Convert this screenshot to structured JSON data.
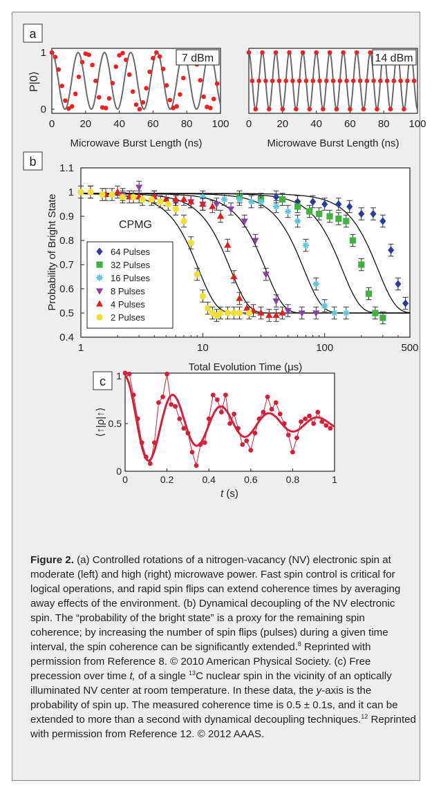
{
  "panel_labels": {
    "a": "a",
    "b": "b",
    "c": "c"
  },
  "chart_data": [
    {
      "id": "a-left",
      "type": "scatter",
      "annotation": "7 dBm",
      "xlabel": "Microwave Burst Length (ns)",
      "ylabel": "P|0⟩",
      "xlim": [
        0,
        100
      ],
      "ylim": [
        0,
        1
      ],
      "xticks": [
        "0",
        "20",
        "40",
        "60",
        "80",
        "100"
      ],
      "yticks": [
        "0",
        "1"
      ],
      "model": {
        "kind": "cosine",
        "period_ns": 15.6,
        "note": "fit line y = 0.5 + 0.5·cos(2πx/15.6)"
      },
      "series": [
        {
          "x": [
            0,
            2,
            4,
            6,
            8,
            10,
            12,
            14,
            16,
            18,
            20,
            22,
            24,
            26,
            28,
            30,
            32,
            34,
            36,
            38,
            40,
            42,
            44,
            46,
            48,
            50,
            52,
            54,
            56,
            58,
            60,
            62,
            64,
            66,
            68,
            70,
            72,
            74,
            76,
            78,
            80,
            82,
            84,
            86,
            88,
            90,
            92,
            94,
            96,
            98
          ],
          "y": [
            1.0,
            0.92,
            0.7,
            0.41,
            0.15,
            0.01,
            0.05,
            0.27,
            0.57,
            0.83,
            0.98,
            0.96,
            0.78,
            0.5,
            0.21,
            0.03,
            0.02,
            0.19,
            0.46,
            0.75,
            0.95,
            0.99,
            0.87,
            0.61,
            0.31,
            0.08,
            0.0,
            0.12,
            0.37,
            0.66,
            0.9,
            1.0,
            0.93,
            0.71,
            0.42,
            0.16,
            0.02,
            0.05,
            0.26,
            0.55,
            0.82,
            0.98,
            0.97,
            0.79,
            0.51,
            0.22,
            0.04,
            0.02,
            0.18,
            0.45
          ]
        }
      ]
    },
    {
      "id": "a-right",
      "type": "scatter",
      "annotation": "14 dBm",
      "xlabel": "Microwave Burst Length (ns)",
      "xlim": [
        0,
        100
      ],
      "ylim": [
        0,
        1
      ],
      "xticks": [
        "0",
        "20",
        "40",
        "60",
        "80",
        "100"
      ],
      "model": {
        "kind": "cosine",
        "period_ns": 8.0,
        "note": "fit line y = 0.5 + 0.5·cos(2πx/8)"
      },
      "series": [
        {
          "x": [
            0,
            2,
            4,
            6,
            8,
            10,
            12,
            14,
            16,
            18,
            20,
            22,
            24,
            26,
            28,
            30,
            32,
            34,
            36,
            38,
            40,
            42,
            44,
            46,
            48,
            50,
            52,
            54,
            56,
            58,
            60,
            62,
            64,
            66,
            68,
            70,
            72,
            74,
            76,
            78,
            80,
            82,
            84,
            86,
            88,
            90,
            92,
            94,
            96,
            98
          ],
          "y": [
            1.0,
            0.5,
            0.0,
            0.5,
            1.0,
            0.5,
            0.0,
            0.5,
            1.0,
            0.5,
            0.0,
            0.5,
            1.0,
            0.5,
            0.0,
            0.5,
            1.0,
            0.5,
            0.0,
            0.5,
            1.0,
            0.5,
            0.0,
            0.5,
            1.0,
            0.5,
            0.0,
            0.5,
            1.0,
            0.5,
            0.0,
            0.5,
            1.0,
            0.5,
            0.0,
            0.5,
            1.0,
            0.5,
            0.0,
            0.5,
            1.0,
            0.5,
            0.0,
            0.5,
            1.0,
            0.5,
            0.0,
            0.5,
            1.0,
            0.5
          ]
        }
      ]
    },
    {
      "id": "b",
      "type": "scatter",
      "xscale": "log",
      "annotation": "CPMG",
      "xlabel": "Total Evolution Time (μs)",
      "ylabel": "Probability of Bright State",
      "xlim": [
        1,
        500
      ],
      "ylim": [
        0.4,
        1.1
      ],
      "xticks": [
        "1",
        "10",
        "100",
        "500"
      ],
      "yticks": [
        "0.4",
        "0.5",
        "0.6",
        "0.7",
        "0.8",
        "0.9",
        "1",
        "1.1"
      ],
      "legend_position": "bottom-left",
      "series": [
        {
          "name": "64 Pulses",
          "color": "#2f3aa0",
          "marker": "diamond",
          "t_half": 275,
          "x": [
            40,
            60,
            80,
            100,
            130,
            160,
            200,
            250,
            300,
            350,
            400,
            460
          ],
          "y": [
            0.98,
            0.96,
            0.96,
            0.95,
            0.95,
            0.94,
            0.91,
            0.91,
            0.88,
            0.76,
            0.62,
            0.54
          ]
        },
        {
          "name": "32 Pulses",
          "color": "#3fb23f",
          "marker": "square",
          "t_half": 140,
          "x": [
            20,
            30,
            45,
            60,
            75,
            90,
            110,
            130,
            150,
            170,
            200,
            230,
            260,
            300
          ],
          "y": [
            0.98,
            0.97,
            0.97,
            0.94,
            0.92,
            0.91,
            0.9,
            0.89,
            0.88,
            0.8,
            0.7,
            0.58,
            0.5,
            0.48
          ]
        },
        {
          "name": "16 Pulses",
          "color": "#5fc8d8",
          "marker": "star",
          "t_half": 68,
          "x": [
            10,
            15,
            20,
            25,
            30,
            40,
            50,
            60,
            70,
            85,
            100,
            120,
            150
          ],
          "y": [
            0.98,
            0.97,
            0.97,
            0.96,
            0.96,
            0.94,
            0.92,
            0.88,
            0.78,
            0.62,
            0.53,
            0.5,
            0.5
          ]
        },
        {
          "name": "8 Pulses",
          "color": "#8a3ea8",
          "marker": "triangle-down",
          "t_half": 33,
          "x": [
            2.2,
            3,
            4,
            6,
            8,
            10,
            13,
            17,
            22,
            27,
            33,
            40,
            50,
            65,
            85
          ],
          "y": [
            0.99,
            1.02,
            0.98,
            0.96,
            0.96,
            0.95,
            0.95,
            0.93,
            0.88,
            0.8,
            0.66,
            0.55,
            0.51,
            0.5,
            0.5
          ]
        },
        {
          "name": "4 Pulses",
          "color": "#e02020",
          "marker": "triangle-up",
          "t_half": 17,
          "x": [
            1.2,
            1.6,
            2,
            2.5,
            3,
            4,
            5,
            6,
            7,
            8,
            10,
            12,
            14,
            16,
            18,
            20,
            23,
            26,
            30,
            35,
            40,
            45
          ],
          "y": [
            1.0,
            0.99,
            1.0,
            0.98,
            0.98,
            0.98,
            0.97,
            0.97,
            0.97,
            0.96,
            0.95,
            0.94,
            0.9,
            0.78,
            0.65,
            0.56,
            0.52,
            0.51,
            0.5,
            0.49,
            0.49,
            0.5
          ]
        },
        {
          "name": "2 Pulses",
          "color": "#f0e030",
          "marker": "circle",
          "t_half": 9.3,
          "x": [
            1,
            1.2,
            1.5,
            1.8,
            2.2,
            2.7,
            3.2,
            3.8,
            4.5,
            5.2,
            6,
            7,
            8,
            9,
            10,
            11,
            12,
            13,
            14,
            16,
            18,
            20,
            24
          ],
          "y": [
            1.0,
            1.0,
            0.99,
            0.99,
            0.98,
            0.98,
            0.97,
            0.97,
            0.96,
            0.95,
            0.93,
            0.88,
            0.79,
            0.66,
            0.57,
            0.52,
            0.5,
            0.49,
            0.5,
            0.5,
            0.5,
            0.5,
            0.5
          ]
        }
      ]
    },
    {
      "id": "c",
      "type": "line",
      "xlabel_italic": "t",
      "xlabel_unit": " (s)",
      "ylabel": "⟨↑|ρ|↑⟩",
      "xlim": [
        0,
        1
      ],
      "ylim": [
        0,
        1
      ],
      "xticks": [
        "0",
        "0.2",
        "0.4",
        "0.6",
        "0.8",
        "1"
      ],
      "yticks": [
        "0",
        "0.5",
        "1"
      ],
      "color": "#d4203a",
      "fit": {
        "kind": "damped-cosine",
        "period_s": 0.23,
        "decay_s": 0.45
      },
      "series": [
        {
          "x": [
            0.0,
            0.02,
            0.04,
            0.06,
            0.08,
            0.1,
            0.12,
            0.14,
            0.16,
            0.18,
            0.2,
            0.22,
            0.24,
            0.26,
            0.28,
            0.3,
            0.32,
            0.34,
            0.36,
            0.38,
            0.4,
            0.42,
            0.44,
            0.46,
            0.48,
            0.5,
            0.52,
            0.54,
            0.56,
            0.58,
            0.6,
            0.62,
            0.64,
            0.66,
            0.68,
            0.7,
            0.72,
            0.74,
            0.76,
            0.78,
            0.8,
            0.82,
            0.84,
            0.86,
            0.88,
            0.9,
            0.92,
            0.94,
            0.96,
            0.98
          ],
          "y": [
            1.03,
            1.02,
            0.8,
            0.55,
            0.3,
            0.15,
            0.08,
            0.3,
            0.72,
            0.78,
            1.02,
            0.7,
            0.68,
            0.55,
            0.45,
            0.4,
            0.2,
            0.06,
            0.28,
            0.3,
            0.55,
            0.8,
            0.75,
            0.62,
            0.8,
            0.5,
            0.6,
            0.45,
            0.28,
            0.32,
            0.22,
            0.4,
            0.55,
            0.62,
            0.78,
            0.65,
            0.72,
            0.6,
            0.5,
            0.38,
            0.2,
            0.35,
            0.52,
            0.55,
            0.58,
            0.5,
            0.62,
            0.52,
            0.48,
            0.45
          ]
        }
      ]
    }
  ],
  "caption": {
    "label": "Figure 2.",
    "p1": " (a) Controlled rotations of a nitrogen-vacancy (NV) electronic spin at moderate (left) and high (right) microwave power. Fast spin control is critical for logical operations, and rapid spin flips can extend coherence times by averaging away effects of the environment. (b) Dynamical decoupling of the NV electronic spin. The “probability of the bright state” is a proxy for the remaining spin coherence; by increasing the number of spin flips (pulses) during a given time interval, the spin coherence can be significantly extended.",
    "ref8": "8",
    "p2": " Reprinted with permission from Reference 8. © 2010 American Physical Society. (c) Free precession over time ",
    "t": "t,",
    "p3": " of a single ",
    "c13": "13",
    "p4": "C nuclear spin in the vicinity of an optically illuminated NV center at room temperature. In these data, the ",
    "y": "y",
    "p5": "-axis is the probability of spin up. The measured coherence time is 0.5 ± 0.1s, and it can be extended to more than a second with dynamical decoupling techniques.",
    "ref12": "12",
    "p6": " Reprinted with permission from Reference 12. © 2012 AAAS."
  }
}
